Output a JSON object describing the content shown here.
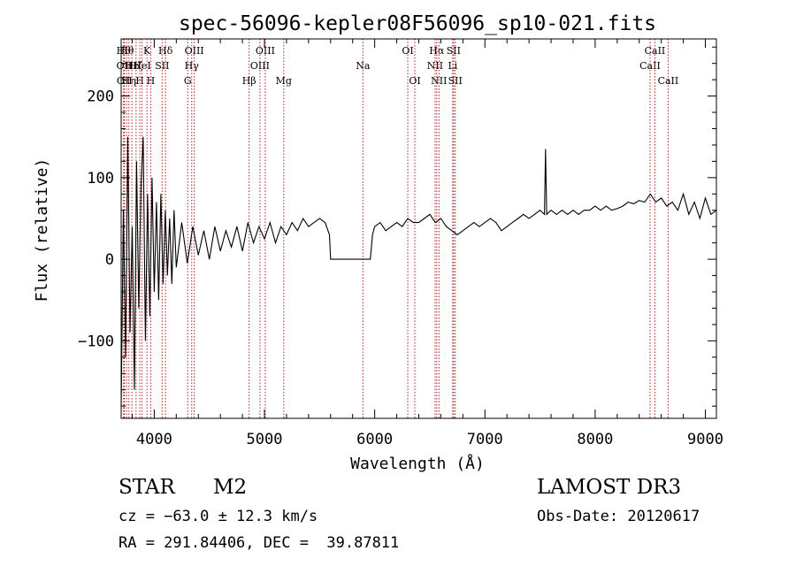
{
  "chart_data": {
    "type": "line",
    "title": "spec-56096-kepler08F56096_sp10-021.fits",
    "xlabel": "Wavelength (Å)",
    "ylabel": "Flux (relative)",
    "xlim": [
      3700,
      9100
    ],
    "ylim": [
      -195,
      270
    ],
    "x_ticks": [
      4000,
      5000,
      6000,
      7000,
      8000,
      9000
    ],
    "x_tick_labels": [
      "4000",
      "5000",
      "6000",
      "7000",
      "8000",
      "9000"
    ],
    "y_ticks": [
      -100,
      0,
      100,
      200
    ],
    "y_tick_labels": [
      "−100",
      "0",
      "100",
      "200"
    ],
    "series": [
      {
        "name": "flux",
        "x": [
          3700,
          3720,
          3740,
          3760,
          3780,
          3800,
          3820,
          3840,
          3860,
          3880,
          3900,
          3920,
          3940,
          3960,
          3980,
          4000,
          4020,
          4040,
          4060,
          4080,
          4100,
          4120,
          4140,
          4160,
          4180,
          4200,
          4250,
          4300,
          4350,
          4400,
          4450,
          4500,
          4550,
          4600,
          4650,
          4700,
          4750,
          4800,
          4850,
          4900,
          4950,
          5000,
          5050,
          5100,
          5150,
          5200,
          5250,
          5300,
          5350,
          5400,
          5450,
          5500,
          5550,
          5590,
          5600,
          5620,
          5700,
          5800,
          5900,
          5960,
          5980,
          6000,
          6050,
          6100,
          6150,
          6200,
          6250,
          6300,
          6350,
          6400,
          6450,
          6500,
          6550,
          6600,
          6650,
          6700,
          6750,
          6800,
          6850,
          6900,
          6950,
          7000,
          7050,
          7100,
          7150,
          7200,
          7250,
          7300,
          7350,
          7400,
          7450,
          7500,
          7540,
          7550,
          7560,
          7600,
          7650,
          7700,
          7750,
          7800,
          7850,
          7900,
          7950,
          8000,
          8050,
          8100,
          8150,
          8200,
          8250,
          8300,
          8350,
          8400,
          8450,
          8500,
          8550,
          8600,
          8650,
          8700,
          8750,
          8800,
          8850,
          8900,
          8950,
          9000,
          9050,
          9100
        ],
        "y": [
          -180,
          60,
          -120,
          150,
          -90,
          40,
          -160,
          120,
          -60,
          90,
          150,
          -100,
          80,
          -70,
          100,
          -40,
          70,
          -50,
          80,
          -30,
          60,
          -20,
          50,
          -30,
          60,
          -10,
          45,
          -5,
          40,
          5,
          35,
          0,
          40,
          10,
          35,
          15,
          40,
          10,
          45,
          20,
          40,
          25,
          45,
          20,
          40,
          30,
          45,
          35,
          50,
          40,
          45,
          50,
          45,
          30,
          0,
          0,
          0,
          0,
          0,
          0,
          30,
          40,
          45,
          35,
          40,
          45,
          40,
          50,
          45,
          45,
          50,
          55,
          45,
          50,
          40,
          35,
          30,
          35,
          40,
          45,
          40,
          45,
          50,
          45,
          35,
          40,
          45,
          50,
          55,
          50,
          55,
          60,
          55,
          135,
          55,
          60,
          55,
          60,
          55,
          60,
          55,
          60,
          60,
          65,
          60,
          65,
          60,
          62,
          65,
          70,
          68,
          72,
          70,
          80,
          70,
          75,
          65,
          70,
          60,
          80,
          55,
          70,
          50,
          75,
          55,
          60
        ]
      }
    ],
    "lines": [
      {
        "x": 3722,
        "row": 1,
        "label": "Hθ"
      },
      {
        "x": 3727,
        "row": 2,
        "label": "OII"
      },
      {
        "x": 3730,
        "row": 3,
        "label": "OII"
      },
      {
        "x": 3750,
        "row": 1,
        "label": "Hθ"
      },
      {
        "x": 3770,
        "row": 3,
        "label": "Hη"
      },
      {
        "x": 3797,
        "row": 2,
        "label": "Hε"
      },
      {
        "x": 3835,
        "row": 2,
        "label": "Hζ"
      },
      {
        "x": 3869,
        "row": 3,
        "label": "H"
      },
      {
        "x": 3889,
        "row": 2,
        "label": "HeI"
      },
      {
        "x": 3934,
        "row": 1,
        "label": "K"
      },
      {
        "x": 3968,
        "row": 3,
        "label": "H"
      },
      {
        "x": 4072,
        "row": 2,
        "label": "SII"
      },
      {
        "x": 4102,
        "row": 1,
        "label": "Hδ"
      },
      {
        "x": 4304,
        "row": 3,
        "label": "G"
      },
      {
        "x": 4340,
        "row": 2,
        "label": "Hγ"
      },
      {
        "x": 4363,
        "row": 1,
        "label": "OIII"
      },
      {
        "x": 4861,
        "row": 3,
        "label": "Hβ"
      },
      {
        "x": 4959,
        "row": 2,
        "label": "OIII"
      },
      {
        "x": 5007,
        "row": 1,
        "label": "OIII"
      },
      {
        "x": 5175,
        "row": 3,
        "label": "Mg"
      },
      {
        "x": 5893,
        "row": 2,
        "label": "Na"
      },
      {
        "x": 6300,
        "row": 1,
        "label": "OI"
      },
      {
        "x": 6364,
        "row": 3,
        "label": "OI"
      },
      {
        "x": 6548,
        "row": 2,
        "label": "NII"
      },
      {
        "x": 6563,
        "row": 1,
        "label": "Hα"
      },
      {
        "x": 6583,
        "row": 3,
        "label": "NII"
      },
      {
        "x": 6708,
        "row": 2,
        "label": "Li"
      },
      {
        "x": 6716,
        "row": 1,
        "label": "SII"
      },
      {
        "x": 6731,
        "row": 3,
        "label": "SII"
      },
      {
        "x": 8498,
        "row": 2,
        "label": "CaII"
      },
      {
        "x": 8542,
        "row": 1,
        "label": "CaII"
      },
      {
        "x": 8662,
        "row": 3,
        "label": "CaII"
      }
    ]
  },
  "info": {
    "class_label": "STAR",
    "subclass_label": "M2",
    "survey_label": "LAMOST DR3",
    "cz_label": "cz = −63.0 ± 12.3 km/s",
    "obs_date_label": "Obs-Date: 20120617",
    "coords_label": "RA = 291.84406, DEC =  39.87811"
  }
}
